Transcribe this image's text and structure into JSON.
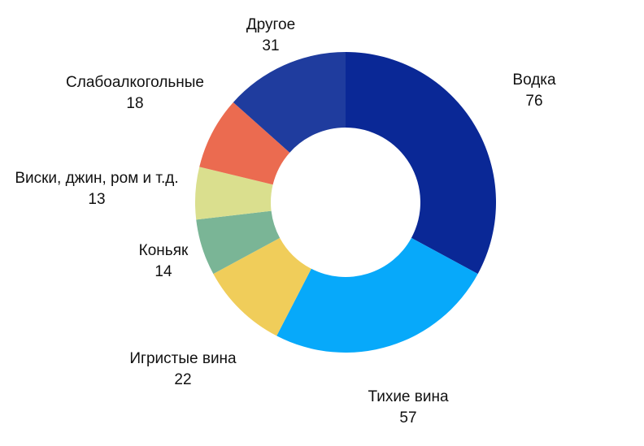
{
  "chart_data": {
    "type": "pie",
    "variant": "donut",
    "title": "",
    "legend": "none",
    "categories": [
      "Водка",
      "Тихие вина",
      "Игристые вина",
      "Коньяк",
      "Виски, джин, ром и т.д.",
      "Слабоалкогольные",
      "Другое"
    ],
    "values": [
      76,
      57,
      22,
      14,
      13,
      18,
      31
    ],
    "colors": [
      "#0a2896",
      "#07a9fa",
      "#f0cd5a",
      "#7ab596",
      "#dadf8e",
      "#eb6b50",
      "#1f3c9e"
    ]
  }
}
